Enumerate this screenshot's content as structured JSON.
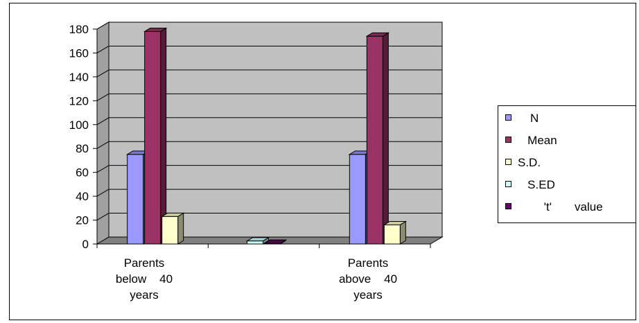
{
  "chart_data": {
    "type": "bar",
    "title": "",
    "xlabel": "",
    "ylabel": "",
    "ylim": [
      0,
      180
    ],
    "yticks": [
      0,
      20,
      40,
      60,
      80,
      100,
      120,
      140,
      160,
      180
    ],
    "grid": true,
    "legend_position": "right",
    "categories": [
      "Parents\nbelow    40\nyears",
      "",
      "Parents\nabove    40\nyears"
    ],
    "series": [
      {
        "name": "N",
        "legend_label": "N",
        "color": "#9999ff",
        "values": [
          75,
          null,
          75
        ]
      },
      {
        "name": "Mean",
        "legend_label": "   Mean",
        "color": "#993366",
        "values": [
          178,
          null,
          174
        ]
      },
      {
        "name": "S.D.",
        "legend_label": "S.D.",
        "color": "#ffffcc",
        "values": [
          23,
          null,
          16
        ]
      },
      {
        "name": "S.ED",
        "legend_label": "   S.ED",
        "color": "#ccffff",
        "values": [
          null,
          2.5,
          null
        ]
      },
      {
        "name": "'t' value",
        "legend_label": "        't'       value",
        "color": "#660066",
        "values": [
          null,
          0.5,
          null
        ]
      }
    ]
  },
  "legend": {
    "items": [
      {
        "label": "N",
        "color": "#9999ff"
      },
      {
        "label": "   Mean",
        "color": "#993366"
      },
      {
        "label": "S.D.",
        "color": "#ffffcc"
      },
      {
        "label": "   S.ED",
        "color": "#ccffff"
      },
      {
        "label": "        't'       value",
        "color": "#660066"
      }
    ]
  },
  "x_labels": [
    "Parents\nbelow    40\nyears",
    "Parents\nabove    40\nyears"
  ]
}
